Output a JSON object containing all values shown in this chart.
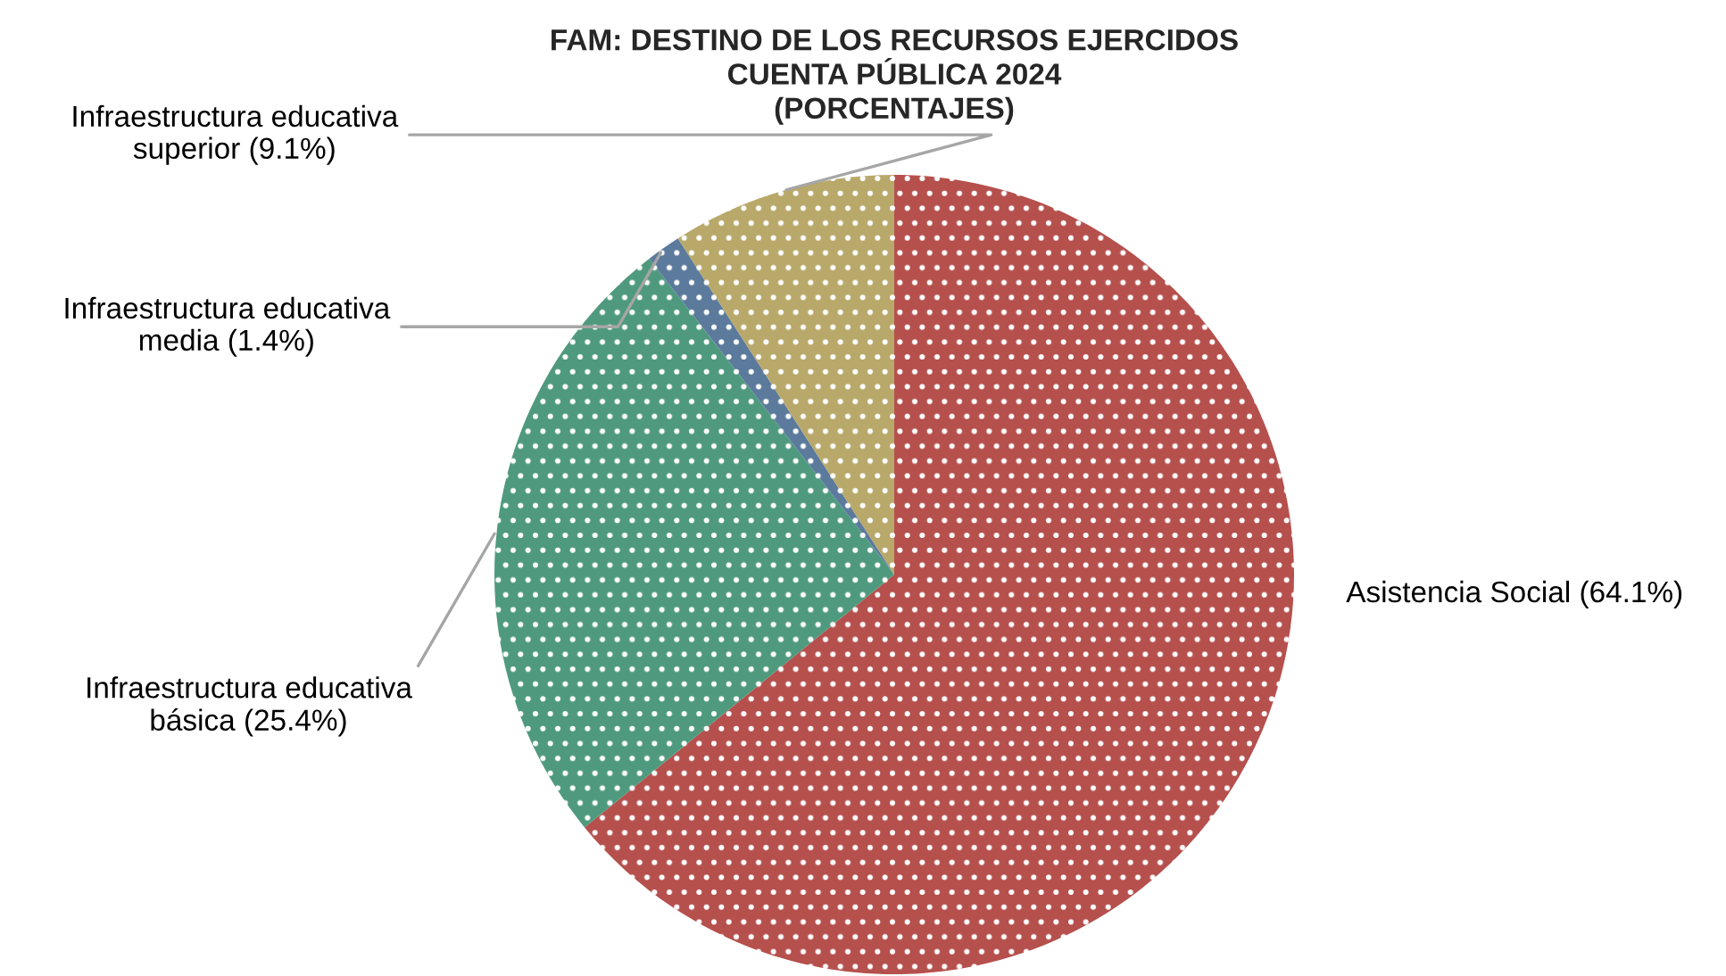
{
  "chart_data": {
    "type": "pie",
    "title": "FAM: DESTINO DE LOS RECURSOS EJERCIDOS\nCUENTA PÚBLICA 2024\n(PORCENTAJES)",
    "categories": [
      "Asistencia Social",
      "Infraestructura educativa básica",
      "Infraestructura educativa media",
      "Infraestructura educativa superior"
    ],
    "values": [
      64.1,
      25.4,
      1.4,
      9.1
    ],
    "value_labels": [
      "(64.1%)",
      "(25.4%)",
      "(1.4%)",
      "(9.1%)"
    ],
    "colors": [
      "#b5504d",
      "#4f9a7e",
      "#5b7a9c",
      "#b8a86a"
    ]
  }
}
